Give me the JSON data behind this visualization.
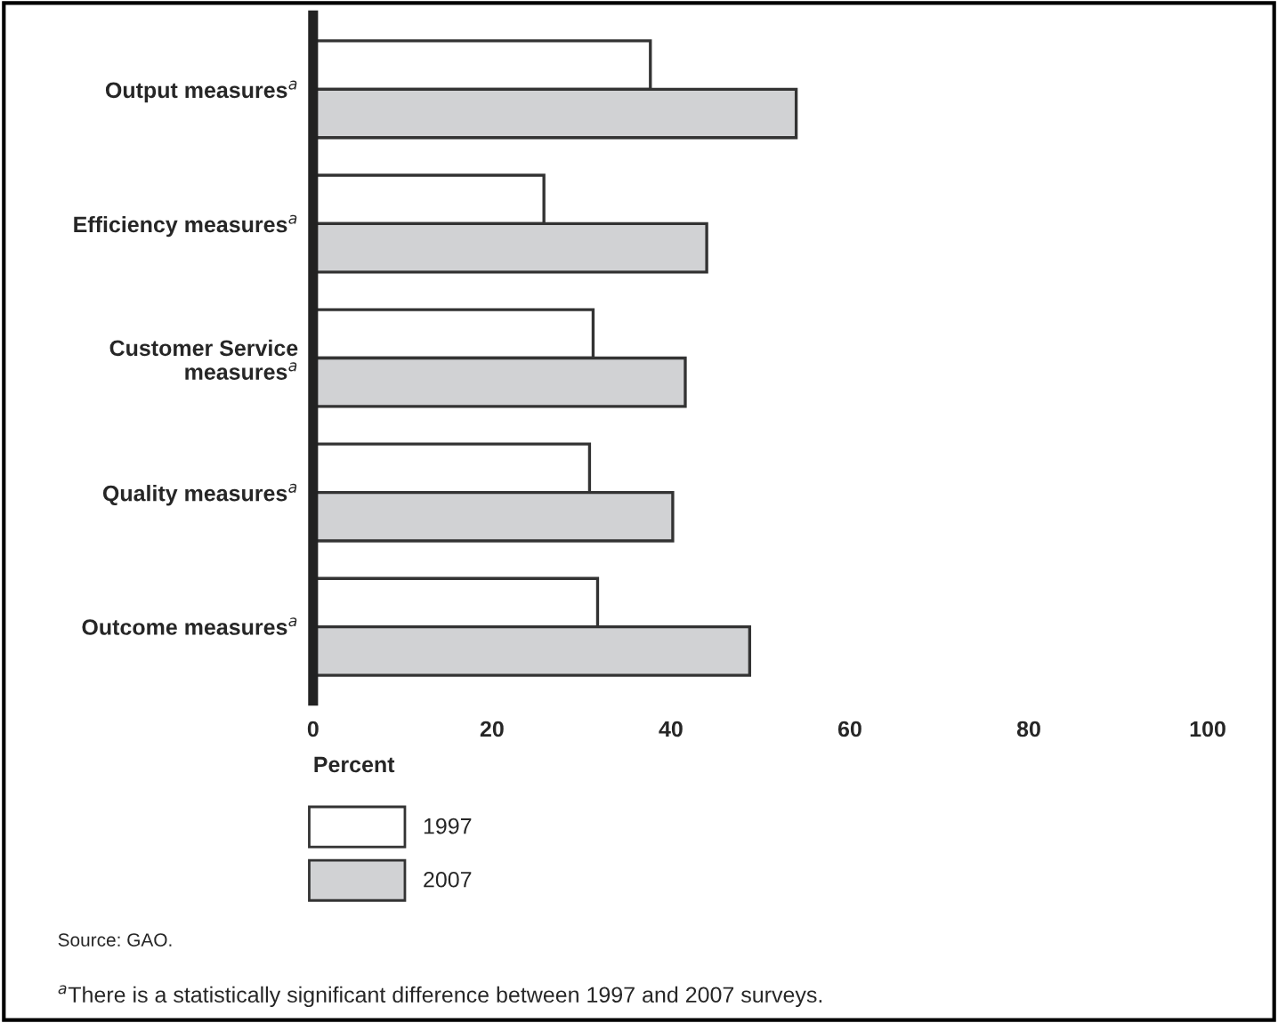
{
  "chart_data": {
    "type": "bar",
    "orientation": "horizontal",
    "categories": [
      "Output measures$^{a}$",
      "Efficiency measures$^{a}$",
      "Customer Service\nmeasures$^{a}$",
      "Quality measures$^{a}$",
      "Outcome measures$^{a}$"
    ],
    "series": [
      {
        "name": "1997",
        "color": "#ffffff",
        "values": [
          37.7,
          25.8,
          31.3,
          30.9,
          31.8
        ]
      },
      {
        "name": "2007",
        "color": "#d1d2d4",
        "values": [
          54.0,
          44.0,
          41.6,
          40.2,
          48.8
        ]
      }
    ],
    "xlabel": "Percent",
    "xlim": [
      0,
      100
    ],
    "xticks": [
      0,
      20,
      40,
      60,
      80,
      100
    ],
    "grid": false,
    "legend": "bottom",
    "annotations": [
      "Source: GAO.",
      "$^{a}$There is a statistically significant difference between 1997 and 2007 surveys."
    ]
  }
}
